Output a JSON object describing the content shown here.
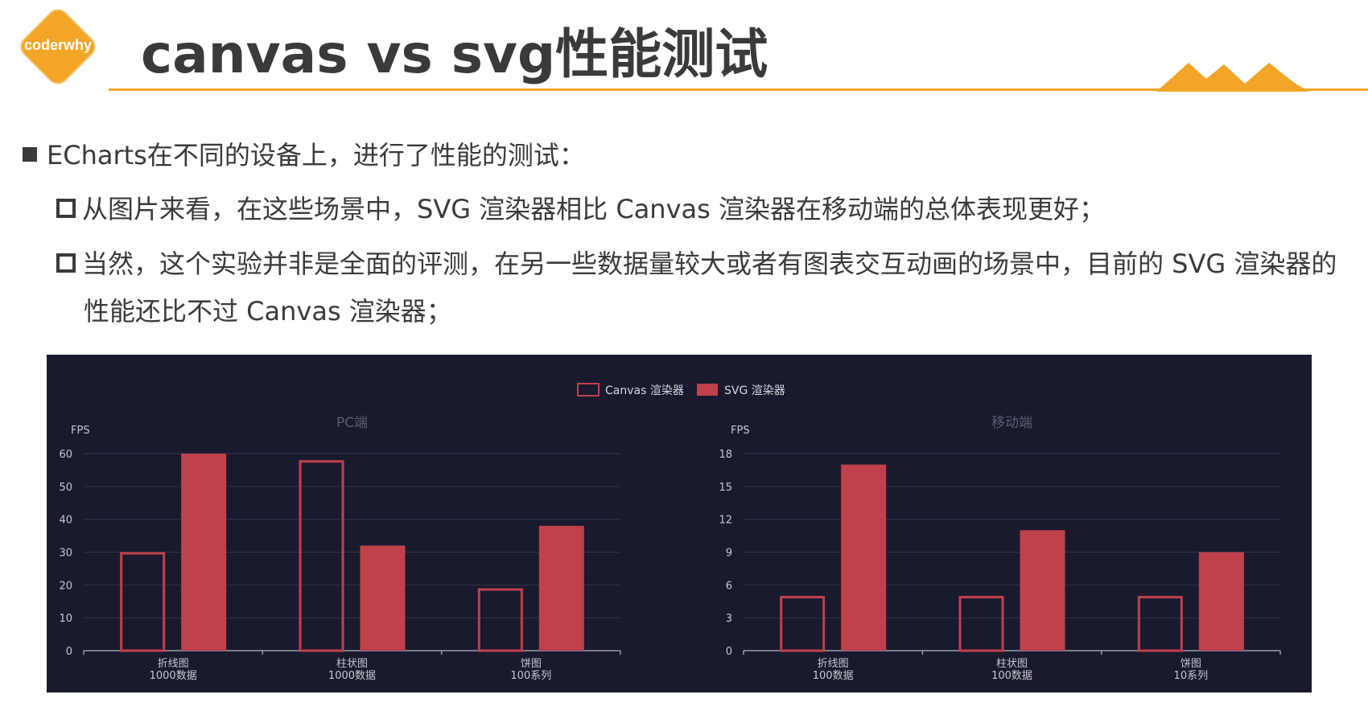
{
  "header": {
    "logo_text": "coderwhy",
    "title": "canvas vs svg性能测试"
  },
  "colors": {
    "accent": "#f2a526",
    "text": "#3a3a3a",
    "chart_bg": "#1a1a2e",
    "series_color": "#c0404c"
  },
  "content": {
    "bullet1": "ECharts在不同的设备上，进行了性能的测试：",
    "sub1": "从图片来看，在这些场景中，SVG 渲染器相比 Canvas 渲染器在移动端的总体表现更好；",
    "sub2_line1": "当然，这个实验并非是全面的评测，在另一些数据量较大或者有图表交互动画的场景中，目前的 SVG 渲染器的",
    "sub2_line2": "性能还比不过 Canvas 渲染器；"
  },
  "chart_data": [
    {
      "type": "bar",
      "title": "PC端",
      "ylabel": "FPS",
      "ylim": [
        0,
        60
      ],
      "yticks": [
        0,
        10,
        20,
        30,
        40,
        50,
        60
      ],
      "categories": [
        [
          "折线图",
          "1000数据"
        ],
        [
          "柱状图",
          "1000数据"
        ],
        [
          "饼图",
          "100系列"
        ]
      ],
      "series": [
        {
          "name": "Canvas 渲染器",
          "style": "outline",
          "values": [
            30,
            58,
            19
          ]
        },
        {
          "name": "SVG 渲染器",
          "style": "filled",
          "values": [
            60,
            32,
            38
          ]
        }
      ],
      "legend": "top-center",
      "grid": true
    },
    {
      "type": "bar",
      "title": "移动端",
      "ylabel": "FPS",
      "ylim": [
        0,
        18
      ],
      "yticks": [
        0,
        3,
        6,
        9,
        12,
        15,
        18
      ],
      "categories": [
        [
          "折线图",
          "100数据"
        ],
        [
          "柱状图",
          "100数据"
        ],
        [
          "饼图",
          "10系列"
        ]
      ],
      "series": [
        {
          "name": "Canvas 渲染器",
          "style": "outline",
          "values": [
            5,
            5,
            5
          ]
        },
        {
          "name": "SVG 渲染器",
          "style": "filled",
          "values": [
            17,
            11,
            9
          ]
        }
      ],
      "legend": "top-center",
      "grid": true
    }
  ]
}
